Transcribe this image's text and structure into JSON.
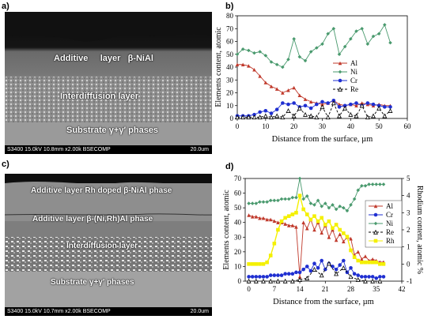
{
  "panels": {
    "a": {
      "label": "a)",
      "layers": [
        "Additive",
        "layer",
        "β-NiAl",
        "Interdiffusion layer",
        "Substrate γ+γ′ phases"
      ],
      "infobar": "S3400 15.0kV 10.8mm x2.00k BSECOMP",
      "scalebar": "20.0um"
    },
    "b": {
      "label": "b)",
      "ylabel": "Elements content, atomic",
      "xlabel": "Distance from the surface, µm"
    },
    "c": {
      "label": "c)",
      "layers": [
        "Additive layer Rh doped β-NiAl phase",
        "Additive layer β-(Ni,Rh)Al phase",
        "Interdiffusion layer",
        "Substrate γ+γ′ phases"
      ],
      "infobar": "S3400 15.0kV 10.7mm x2.00k BSECOMP",
      "scalebar": "20.0um"
    },
    "d": {
      "label": "d)",
      "ylabel": "Elements content, atomic",
      "y2label": "Rhodium content, atomic %",
      "xlabel": "Distance from the surface, µm"
    }
  },
  "colors": {
    "Al": "#c0392b",
    "Ni": "#4a9a6e",
    "Cr": "#1f2fd1",
    "Re": "#000000",
    "Rh": "#f4f000"
  },
  "chart_data": [
    {
      "type": "line",
      "title": "",
      "xlabel": "Distance from the surface, µm",
      "ylabel": "Elements content, atomic",
      "xlim": [
        0,
        60
      ],
      "ylim": [
        0,
        80
      ],
      "xticks": [
        0,
        10,
        20,
        30,
        40,
        50,
        60
      ],
      "yticks": [
        0,
        10,
        20,
        30,
        40,
        50,
        60,
        70,
        80
      ],
      "legend_position": "center-right",
      "series": [
        {
          "name": "Al",
          "x": [
            0,
            2,
            4,
            6,
            8,
            10,
            12,
            14,
            16,
            18,
            20,
            22,
            24,
            26,
            28,
            30,
            32,
            34,
            36,
            38,
            40,
            42,
            44,
            46,
            48,
            50,
            52,
            54
          ],
          "values": [
            42,
            42,
            41,
            38,
            33,
            28,
            25,
            23,
            20,
            22,
            24,
            18,
            15,
            13,
            12,
            11,
            12,
            14,
            11,
            10,
            11,
            10,
            12,
            11,
            10,
            11,
            10,
            10
          ]
        },
        {
          "name": "Ni",
          "x": [
            0,
            2,
            4,
            6,
            8,
            10,
            12,
            14,
            16,
            18,
            20,
            22,
            24,
            26,
            28,
            30,
            32,
            34,
            36,
            38,
            40,
            42,
            44,
            46,
            48,
            50,
            52,
            54
          ],
          "values": [
            50,
            54,
            53,
            51,
            52,
            49,
            44,
            42,
            40,
            46,
            62,
            48,
            45,
            52,
            55,
            58,
            66,
            70,
            50,
            56,
            62,
            68,
            70,
            58,
            64,
            66,
            73,
            59
          ]
        },
        {
          "name": "Cr",
          "x": [
            0,
            2,
            4,
            6,
            8,
            10,
            12,
            14,
            16,
            18,
            20,
            22,
            24,
            26,
            28,
            30,
            32,
            34,
            36,
            38,
            40,
            42,
            44,
            46,
            48,
            50,
            52,
            54
          ],
          "values": [
            2,
            2,
            2,
            3,
            5,
            6,
            4,
            7,
            12,
            11,
            12,
            9,
            10,
            8,
            11,
            13,
            12,
            14,
            9,
            10,
            11,
            12,
            10,
            12,
            11,
            10,
            9,
            9
          ]
        },
        {
          "name": "Re",
          "x": [
            0,
            2,
            4,
            6,
            8,
            10,
            12,
            14,
            16,
            18,
            20,
            22,
            24,
            26,
            28,
            30,
            32,
            34,
            36,
            38,
            40,
            42,
            44,
            46,
            48,
            50,
            52,
            54
          ],
          "values": [
            1,
            1,
            1,
            1,
            1,
            2,
            1,
            2,
            1,
            6,
            2,
            8,
            3,
            2,
            1,
            9,
            1,
            12,
            2,
            8,
            3,
            2,
            10,
            1,
            2,
            8,
            2,
            6
          ]
        }
      ]
    },
    {
      "type": "line",
      "title": "",
      "xlabel": "Distance from the surface, µm",
      "ylabel": "Elements content, atomic",
      "y2label": "Rhodium content, atomic %",
      "xlim": [
        -1,
        42
      ],
      "ylim": [
        0,
        70
      ],
      "y2lim": [
        -1,
        5
      ],
      "xticks": [
        0,
        7,
        14,
        21,
        28,
        35,
        42
      ],
      "yticks": [
        0,
        10,
        20,
        30,
        40,
        50,
        60,
        70
      ],
      "y2ticks": [
        -1,
        0,
        1,
        2,
        3,
        4,
        5
      ],
      "legend_position": "center-right",
      "series": [
        {
          "name": "Al",
          "x": [
            0,
            1,
            2,
            3,
            4,
            5,
            6,
            7,
            8,
            9,
            10,
            11,
            12,
            13,
            14,
            15,
            16,
            17,
            18,
            19,
            20,
            21,
            22,
            23,
            24,
            25,
            26,
            27,
            28,
            29,
            30,
            31,
            32,
            33,
            34,
            35,
            36,
            37
          ],
          "values": [
            45,
            44,
            44,
            43,
            43,
            42,
            42,
            41,
            40,
            40,
            39,
            38,
            38,
            37,
            3,
            40,
            36,
            42,
            35,
            40,
            33,
            38,
            30,
            35,
            28,
            32,
            27,
            30,
            29,
            18,
            20,
            15,
            17,
            14,
            15,
            14,
            13,
            13
          ]
        },
        {
          "name": "Cr",
          "x": [
            0,
            1,
            2,
            3,
            4,
            5,
            6,
            7,
            8,
            9,
            10,
            11,
            12,
            13,
            14,
            15,
            16,
            17,
            18,
            19,
            20,
            21,
            22,
            23,
            24,
            25,
            26,
            27,
            28,
            29,
            30,
            31,
            32,
            33,
            34,
            35,
            36,
            37
          ],
          "values": [
            3,
            3,
            3,
            3,
            3,
            3,
            4,
            4,
            4,
            4,
            5,
            5,
            5,
            6,
            6,
            8,
            10,
            7,
            12,
            9,
            14,
            8,
            12,
            10,
            8,
            11,
            14,
            6,
            9,
            5,
            4,
            3,
            3,
            3,
            3,
            2,
            3,
            3
          ]
        },
        {
          "name": "Ni",
          "x": [
            0,
            1,
            2,
            3,
            4,
            5,
            6,
            7,
            8,
            9,
            10,
            11,
            12,
            13,
            14,
            15,
            16,
            17,
            18,
            19,
            20,
            21,
            22,
            23,
            24,
            25,
            26,
            27,
            28,
            29,
            30,
            31,
            32,
            33,
            34,
            35,
            36,
            37
          ],
          "values": [
            53,
            53,
            53,
            54,
            54,
            54,
            55,
            55,
            55,
            56,
            56,
            56,
            57,
            57,
            70,
            56,
            58,
            53,
            52,
            55,
            51,
            53,
            50,
            52,
            49,
            51,
            50,
            48,
            52,
            56,
            62,
            65,
            65,
            66,
            66,
            66,
            66,
            66
          ]
        },
        {
          "name": "Re",
          "x": [
            0,
            2,
            4,
            6,
            8,
            10,
            12,
            14,
            16,
            18,
            20,
            22,
            24,
            26,
            28,
            30,
            32,
            34,
            36
          ],
          "values": [
            0,
            0,
            0,
            0,
            0,
            0,
            0,
            1,
            2,
            8,
            4,
            12,
            5,
            9,
            3,
            1,
            0,
            0,
            0
          ]
        },
        {
          "name": "Rh",
          "axis": "y2",
          "x": [
            0,
            1,
            2,
            3,
            4,
            5,
            6,
            7,
            8,
            9,
            10,
            11,
            12,
            13,
            14,
            15,
            16,
            17,
            18,
            19,
            20,
            21,
            22,
            23,
            24,
            25,
            26,
            27,
            28,
            29,
            30,
            31,
            32,
            33,
            34,
            35,
            36,
            37
          ],
          "values": [
            0,
            0,
            0,
            0,
            0,
            0.1,
            0.5,
            1.2,
            2,
            2.5,
            2.7,
            2.8,
            2.9,
            3,
            4,
            3.2,
            2.9,
            2.6,
            2.8,
            2.5,
            2.7,
            2.3,
            2.5,
            2.1,
            2.3,
            2,
            1.8,
            1.6,
            0.8,
            0.4,
            0.2,
            0.1,
            0.1,
            0.1,
            0.1,
            0.1,
            0,
            0
          ]
        }
      ]
    }
  ]
}
